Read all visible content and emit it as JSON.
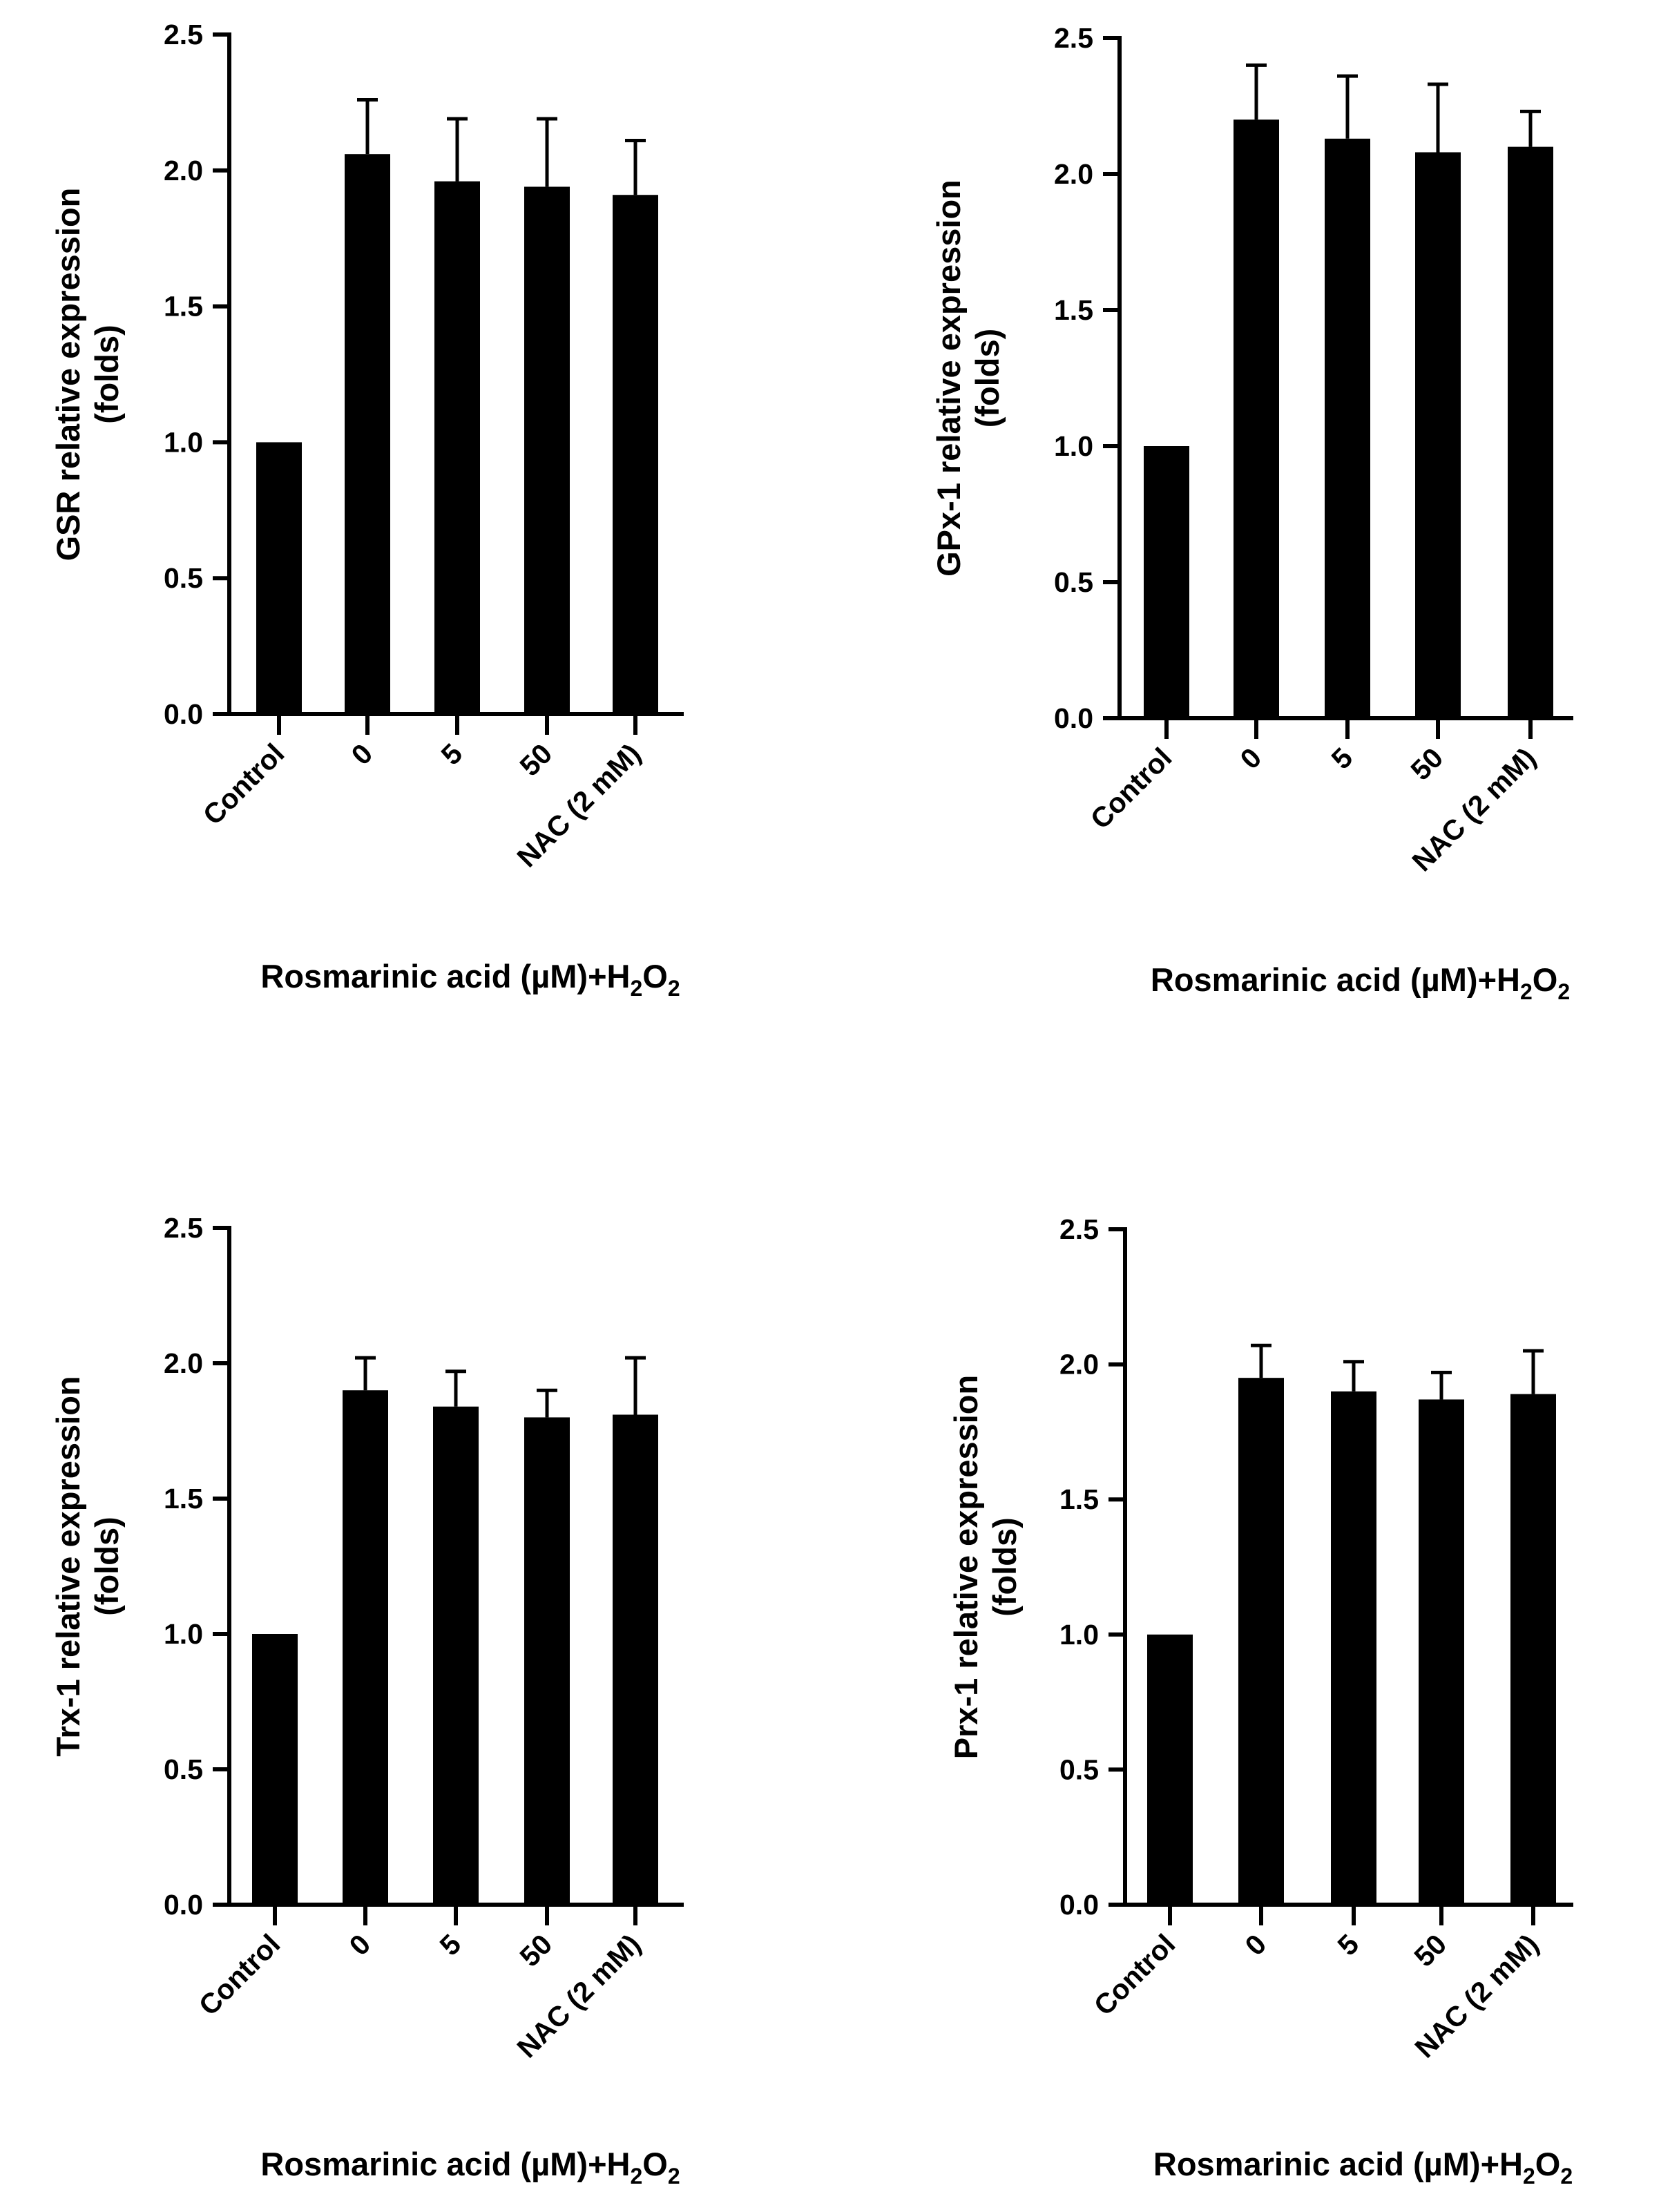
{
  "chart_data": [
    {
      "type": "bar",
      "categories": [
        "Control",
        "0",
        "5",
        "50",
        "NAC (2 mM)"
      ],
      "values": [
        1.0,
        2.06,
        1.96,
        1.94,
        1.91
      ],
      "errors": [
        0,
        0.2,
        0.23,
        0.25,
        0.2
      ],
      "ylabel_line1": "GSR relative expression",
      "ylabel_line2": "(folds)",
      "xlabel_main": "Rosmarinic acid (µM)+H",
      "xlabel_sub1": "2",
      "xlabel_mid": "O",
      "xlabel_sub2": "2",
      "ylim": [
        0,
        2.5
      ],
      "yticks": [
        "0.0",
        "0.5",
        "1.0",
        "1.5",
        "2.0",
        "2.5"
      ],
      "bar_color": "#000000"
    },
    {
      "type": "bar",
      "categories": [
        "Control",
        "0",
        "5",
        "50",
        "NAC (2 mM)"
      ],
      "values": [
        1.0,
        2.2,
        2.13,
        2.08,
        2.1
      ],
      "errors": [
        0,
        0.2,
        0.23,
        0.25,
        0.13
      ],
      "ylabel_line1": "GPx-1 relative expression",
      "ylabel_line2": "(folds)",
      "xlabel_main": "Rosmarinic acid (µM)+H",
      "xlabel_sub1": "2",
      "xlabel_mid": "O",
      "xlabel_sub2": "2",
      "ylim": [
        0,
        2.5
      ],
      "yticks": [
        "0.0",
        "0.5",
        "1.0",
        "1.5",
        "2.0",
        "2.5"
      ],
      "bar_color": "#000000"
    },
    {
      "type": "bar",
      "categories": [
        "Control",
        "0",
        "5",
        "50",
        "NAC (2 mM)"
      ],
      "values": [
        1.0,
        1.9,
        1.84,
        1.8,
        1.81
      ],
      "errors": [
        0,
        0.12,
        0.13,
        0.1,
        0.21
      ],
      "ylabel_line1": "Trx-1 relative expression",
      "ylabel_line2": "(folds)",
      "xlabel_main": "Rosmarinic acid (µM)+H",
      "xlabel_sub1": "2",
      "xlabel_mid": "O",
      "xlabel_sub2": "2",
      "ylim": [
        0,
        2.5
      ],
      "yticks": [
        "0.0",
        "0.5",
        "1.0",
        "1.5",
        "2.0",
        "2.5"
      ],
      "bar_color": "#000000"
    },
    {
      "type": "bar",
      "categories": [
        "Control",
        "0",
        "5",
        "50",
        "NAC (2 mM)"
      ],
      "values": [
        1.0,
        1.95,
        1.9,
        1.87,
        1.89
      ],
      "errors": [
        0,
        0.12,
        0.11,
        0.1,
        0.16
      ],
      "ylabel_line1": "Prx-1 relative expression",
      "ylabel_line2": "(folds)",
      "xlabel_main": "Rosmarinic acid (µM)+H",
      "xlabel_sub1": "2",
      "xlabel_mid": "O",
      "xlabel_sub2": "2",
      "ylim": [
        0,
        2.5
      ],
      "yticks": [
        "0.0",
        "0.5",
        "1.0",
        "1.5",
        "2.0",
        "2.5"
      ],
      "bar_color": "#000000"
    }
  ]
}
